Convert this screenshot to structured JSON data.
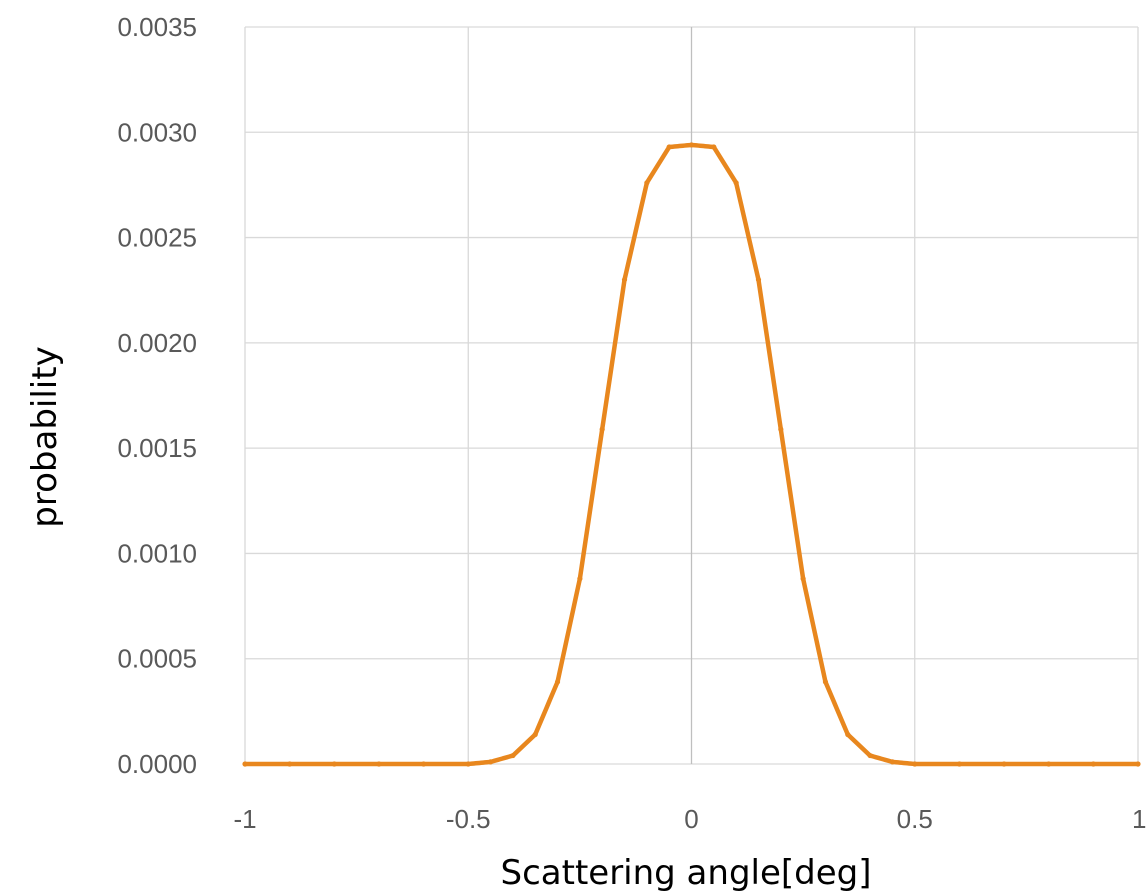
{
  "chart_data": {
    "type": "scatter",
    "title": "",
    "xlabel": "Scattering angle[deg]",
    "ylabel": "probability",
    "xlim": [
      -1,
      1
    ],
    "ylim": [
      0,
      0.0035
    ],
    "x_ticks": [
      "-1",
      "-0.5",
      "0",
      "0.5",
      "1"
    ],
    "y_ticks": [
      "0.0000",
      "0.0005",
      "0.0010",
      "0.0015",
      "0.0020",
      "0.0025",
      "0.0030",
      "0.0035"
    ],
    "grid": true,
    "legend": "none",
    "series_color": "#E8871E",
    "series": [
      {
        "x": [
          -1.0,
          -0.9,
          -0.8,
          -0.7,
          -0.6,
          -0.5,
          -0.45,
          -0.4,
          -0.35,
          -0.3,
          -0.25,
          -0.2,
          -0.15,
          -0.1,
          -0.05,
          0.0,
          0.05,
          0.1,
          0.15,
          0.2,
          0.25,
          0.3,
          0.35,
          0.4,
          0.45,
          0.5,
          0.6,
          0.7,
          0.8,
          0.9,
          1.0
        ],
        "y": [
          0.0,
          0.0,
          0.0,
          0.0,
          0.0,
          0.0,
          1e-05,
          4e-05,
          0.00014,
          0.00039,
          0.00088,
          0.00159,
          0.0023,
          0.00276,
          0.00293,
          0.00294,
          0.00293,
          0.00276,
          0.0023,
          0.00159,
          0.00088,
          0.00039,
          0.00014,
          4e-05,
          1e-05,
          0.0,
          0.0,
          0.0,
          0.0,
          0.0,
          0.0
        ]
      }
    ]
  }
}
